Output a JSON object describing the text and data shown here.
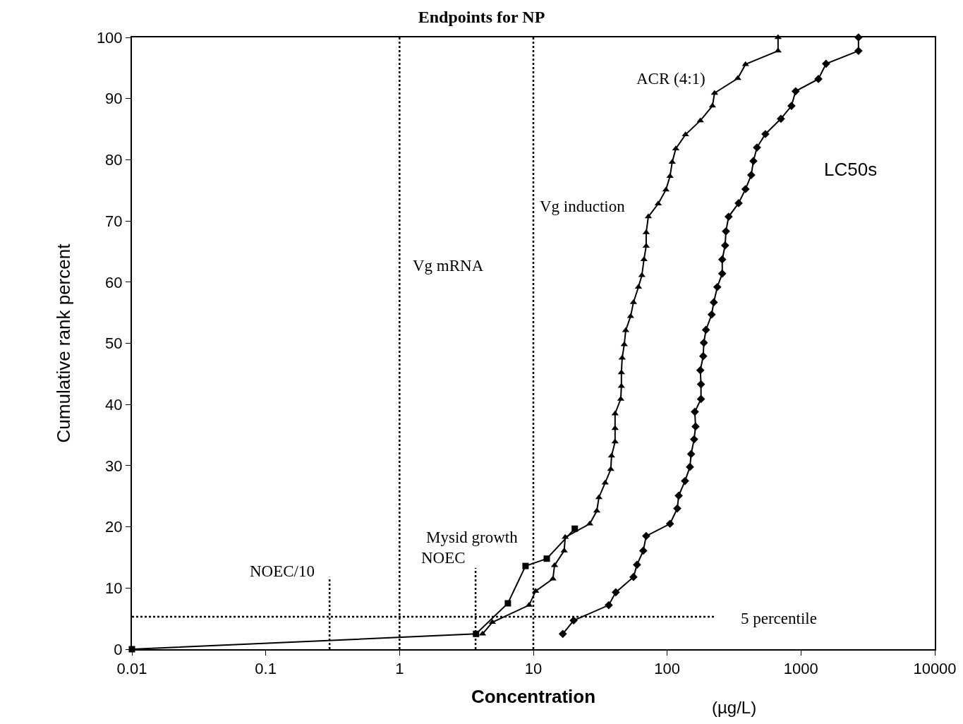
{
  "chart_data": {
    "type": "line",
    "title": "Endpoints for NP",
    "xlabel": "Concentration",
    "ylabel": "Cumulative rank percent",
    "log": "x",
    "grid": false,
    "xlim": [
      0.01,
      10000
    ],
    "xticks": [
      0.01,
      0.1,
      1,
      10,
      100,
      1000,
      10000
    ],
    "ylim": [
      0,
      100
    ],
    "yticks": [
      0,
      10,
      20,
      30,
      40,
      50,
      60,
      70,
      80,
      90,
      100
    ],
    "series": [
      {
        "color": "#000000",
        "marker": "triangle",
        "line_style": "solid",
        "x": [
          4.17,
          4.94,
          9.29,
          10.4,
          14.0,
          14.4,
          17.0,
          17.3,
          26.4,
          29.8,
          30.9,
          34.4,
          37.9,
          38.4,
          40.8,
          40.8,
          40.8,
          45.0,
          45.5,
          45.5,
          46.1,
          47.8,
          49.0,
          53.3,
          56.0,
          61.0,
          64.7,
          67.1,
          69.7,
          69.7,
          72.3,
          85.7,
          97.9,
          105,
          109,
          116,
          137,
          177,
          218,
          226,
          337,
          385,
          674,
          674
        ],
        "values": [
          2.5,
          4.4,
          7.2,
          9.5,
          11.5,
          13.7,
          16.1,
          18.3,
          20.5,
          22.6,
          24.8,
          27.2,
          29.4,
          31.6,
          33.9,
          36.1,
          38.5,
          40.9,
          43.0,
          45.2,
          47.6,
          49.8,
          52.1,
          54.4,
          56.7,
          59.2,
          61.1,
          63.7,
          65.9,
          68.1,
          70.7,
          72.8,
          75.1,
          77.3,
          79.6,
          81.8,
          84.1,
          86.4,
          88.8,
          90.9,
          93.3,
          95.6,
          97.8,
          100
        ]
      },
      {
        "color": "#000000",
        "marker": "diamond",
        "line_style": "solid",
        "x": [
          16.6,
          20.0,
          36.6,
          41.3,
          56.0,
          59.5,
          66.3,
          69.7,
          105,
          119,
          122,
          136,
          148,
          151,
          159,
          163,
          161,
          179,
          179,
          177,
          186,
          188,
          195,
          215,
          223,
          237,
          258,
          258,
          271,
          275,
          288,
          342,
          385,
          425,
          441,
          469,
          542,
          708,
          849,
          912,
          1350,
          1540,
          2690,
          2690
        ],
        "values": [
          2.5,
          4.7,
          7.2,
          9.3,
          11.8,
          13.8,
          16.1,
          18.5,
          20.5,
          23.0,
          25.1,
          27.5,
          29.8,
          31.9,
          34.3,
          36.4,
          38.8,
          40.9,
          43.3,
          45.6,
          47.9,
          50.1,
          52.2,
          54.7,
          56.7,
          59.2,
          61.4,
          63.7,
          66.0,
          68.3,
          70.7,
          72.9,
          75.2,
          77.5,
          79.8,
          82.0,
          84.2,
          86.7,
          88.8,
          91.2,
          93.2,
          95.7,
          97.8,
          100
        ]
      },
      {
        "color": "#000000",
        "marker": "square",
        "line_style": "solid",
        "x": [
          0.01,
          3.73,
          6.45,
          8.74,
          12.6,
          20.4
        ],
        "values": [
          0,
          2.5,
          7.5,
          13.6,
          14.8,
          19.7
        ]
      },
      {
        "color": "#000000",
        "marker": "none",
        "line_style": "dotted",
        "x": [
          0.01,
          232
        ],
        "values": [
          5.3,
          5.3
        ]
      },
      {
        "color": "#000000",
        "marker": "none",
        "line_style": "dotted",
        "x": [
          0.3,
          0.3
        ],
        "values": [
          0,
          11.8
        ]
      },
      {
        "color": "#000000",
        "marker": "none",
        "line_style": "dotted",
        "x": [
          3.7,
          3.7
        ],
        "values": [
          0,
          13.3
        ]
      }
    ],
    "ref_lines": [
      {
        "axis": "x",
        "value": 1,
        "color": "#000000",
        "line_style": "dotted"
      },
      {
        "axis": "x",
        "value": 10,
        "color": "#000000",
        "line_style": "dotted"
      }
    ],
    "annotations": [
      "Vg mRNA",
      "Vg induction",
      "ACR (4:1)",
      "LC50s",
      "Mysid growth",
      "NOEC",
      "NOEC/10",
      "5 percentile",
      "(µg/L)"
    ]
  }
}
